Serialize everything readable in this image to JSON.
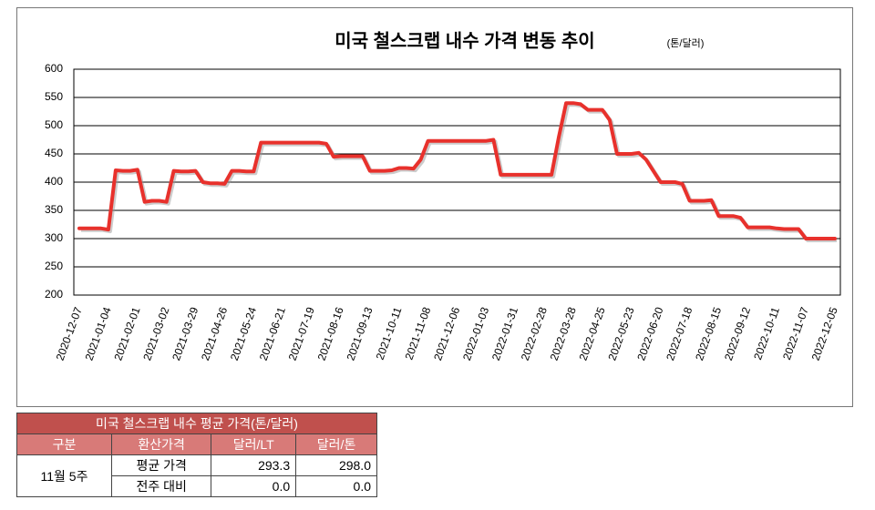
{
  "chart_data": {
    "type": "line",
    "title": "미국 철스크랩 내수 가격 변동 추이",
    "subtitle": "(톤/달러)",
    "categories": [
      "2020-12-07",
      null,
      null,
      null,
      "2021-01-04",
      null,
      null,
      null,
      "2021-02-01",
      null,
      null,
      null,
      "2021-03-02",
      null,
      null,
      null,
      "2021-03-29",
      null,
      null,
      null,
      "2021-04-26",
      null,
      null,
      null,
      "2021-05-24",
      null,
      null,
      null,
      "2021-06-21",
      null,
      null,
      null,
      "2021-07-19",
      null,
      null,
      null,
      "2021-08-16",
      null,
      null,
      null,
      "2021-09-13",
      null,
      null,
      null,
      "2021-10-11",
      null,
      null,
      null,
      "2021-11-08",
      null,
      null,
      null,
      "2021-12-06",
      null,
      null,
      null,
      "2022-01-03",
      null,
      null,
      null,
      "2022-01-31",
      null,
      null,
      null,
      "2022-02-28",
      null,
      null,
      null,
      "2022-03-28",
      null,
      null,
      null,
      "2022-04-25",
      null,
      null,
      null,
      "2022-05-23",
      null,
      null,
      null,
      "2022-06-20",
      null,
      null,
      null,
      "2022-07-18",
      null,
      null,
      null,
      "2022-08-15",
      null,
      null,
      null,
      "2022-09-12",
      null,
      null,
      null,
      "2022-10-11",
      null,
      null,
      null,
      "2022-11-07",
      null,
      null,
      null,
      "2022-12-05"
    ],
    "values": [
      318,
      318,
      318,
      318,
      316,
      421,
      420,
      420,
      422,
      365,
      367,
      367,
      365,
      420,
      419,
      419,
      420,
      400,
      398,
      398,
      397,
      420,
      420,
      419,
      419,
      470,
      470,
      470,
      470,
      470,
      470,
      470,
      470,
      470,
      468,
      445,
      446,
      446,
      446,
      446,
      420,
      420,
      420,
      421,
      425,
      425,
      424,
      440,
      473,
      473,
      473,
      473,
      473,
      473,
      473,
      473,
      473,
      475,
      413,
      413,
      413,
      413,
      413,
      413,
      413,
      413,
      480,
      540,
      540,
      538,
      528,
      528,
      528,
      510,
      450,
      450,
      450,
      452,
      440,
      420,
      400,
      400,
      400,
      397,
      367,
      367,
      367,
      368,
      340,
      340,
      340,
      337,
      320,
      320,
      320,
      320,
      318,
      317,
      317,
      317,
      300,
      300,
      300,
      300,
      300
    ],
    "color": "#e8312c",
    "ylim": [
      200,
      600
    ],
    "yticks": [
      200,
      250,
      300,
      350,
      400,
      450,
      500,
      550,
      600
    ],
    "grid": true
  },
  "table": {
    "title": "미국 철스크랩 내수 평균 가격(톤/달러)",
    "header": [
      "구분",
      "환산가격",
      "달러/LT",
      "달러/톤"
    ],
    "group": "11월 5주",
    "rows": [
      [
        "평균 가격",
        "293.3",
        "298.0"
      ],
      [
        "전주 대비",
        "0.0",
        "0.0"
      ]
    ]
  }
}
